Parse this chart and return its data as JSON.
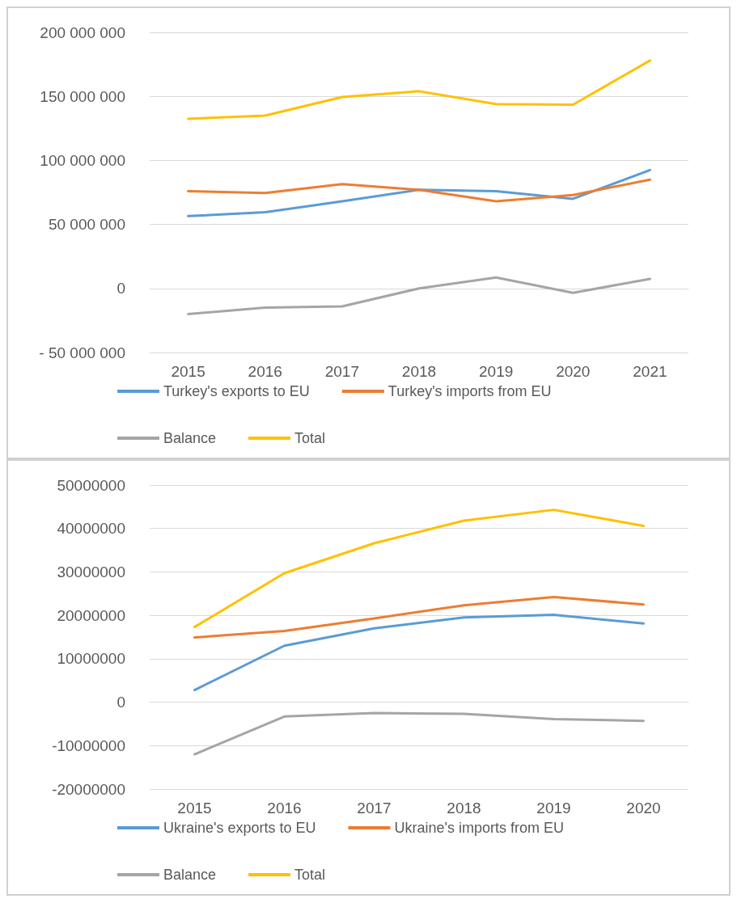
{
  "chart_data": [
    {
      "type": "line",
      "categories": [
        "2015",
        "2016",
        "2017",
        "2018",
        "2019",
        "2020",
        "2021"
      ],
      "series": [
        {
          "name": "Turkey's exports to EU",
          "color": "#5b9bd5",
          "values": [
            56500000,
            59500000,
            68000000,
            77000000,
            76000000,
            70000000,
            92500000
          ]
        },
        {
          "name": "Turkey's imports from EU",
          "color": "#ed7d31",
          "values": [
            76000000,
            74500000,
            81500000,
            77000000,
            68000000,
            73000000,
            85000000
          ]
        },
        {
          "name": "Balance",
          "color": "#a5a5a5",
          "values": [
            -20000000,
            -15000000,
            -14000000,
            0,
            8500000,
            -3500000,
            7500000
          ]
        },
        {
          "name": "Total",
          "color": "#ffc000",
          "values": [
            132500000,
            135000000,
            149500000,
            154000000,
            144000000,
            143500000,
            178000000
          ]
        }
      ],
      "ylim": [
        -50000000,
        200000000
      ],
      "yticks": [
        {
          "value": -50000000,
          "label": "- 50 000 000"
        },
        {
          "value": 0,
          "label": "0"
        },
        {
          "value": 50000000,
          "label": "50 000 000"
        },
        {
          "value": 100000000,
          "label": "100 000 000"
        },
        {
          "value": 150000000,
          "label": "150 000 000"
        },
        {
          "value": 200000000,
          "label": "200 000 000"
        }
      ],
      "grid": "y",
      "legend": "bottom",
      "marker": "none",
      "line_style": "solid"
    },
    {
      "type": "line",
      "categories": [
        "2015",
        "2016",
        "2017",
        "2018",
        "2019",
        "2020"
      ],
      "series": [
        {
          "name": "Ukraine's exports to EU",
          "color": "#5b9bd5",
          "values": [
            2800000,
            13000000,
            17000000,
            19500000,
            20100000,
            18100000
          ]
        },
        {
          "name": "Ukraine's imports from EU",
          "color": "#ed7d31",
          "values": [
            14900000,
            16400000,
            19300000,
            22300000,
            24200000,
            22500000
          ]
        },
        {
          "name": "Balance",
          "color": "#a5a5a5",
          "values": [
            -12000000,
            -3300000,
            -2500000,
            -2700000,
            -3900000,
            -4300000
          ]
        },
        {
          "name": "Total",
          "color": "#ffc000",
          "values": [
            17300000,
            29700000,
            36600000,
            41800000,
            44300000,
            40600000
          ]
        }
      ],
      "ylim": [
        -20000000,
        50000000
      ],
      "yticks": [
        -20000000,
        -10000000,
        0,
        10000000,
        20000000,
        30000000,
        40000000,
        50000000
      ],
      "grid": "y",
      "legend": "bottom",
      "marker": "none",
      "line_style": "solid"
    }
  ]
}
